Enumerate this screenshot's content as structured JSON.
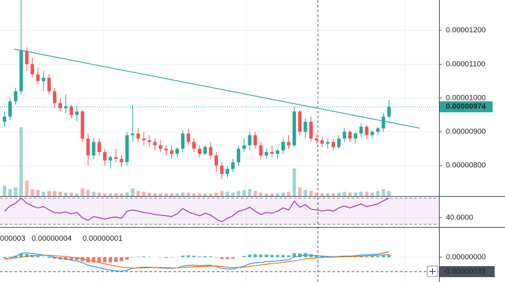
{
  "chart_data": {
    "type": "candlestick",
    "up_color": "#26a69a",
    "down_color": "#ef5350",
    "ylim": [
      7.1e-06,
      1.29e-05
    ],
    "yticks": [
      {
        "value": 8e-06,
        "label": "0.00000800"
      },
      {
        "value": 9e-06,
        "label": "0.00000900"
      },
      {
        "value": 1e-05,
        "label": "0.00001000"
      },
      {
        "value": 1.1e-05,
        "label": "0.00001100"
      },
      {
        "value": 1.2e-05,
        "label": "0.00001200"
      }
    ],
    "grid": true,
    "open": [
      9.3e-06,
      9.45e-06,
      9.9e-06,
      1.02e-05,
      1.14e-05,
      1.1e-05,
      1.07e-05,
      1.05e-05,
      1.06e-05,
      1.02e-05,
      9.85e-06,
      9.7e-06,
      9.75e-06,
      9.5e-06,
      9.6e-06,
      8.8e-06,
      8.3e-06,
      8.7e-06,
      8.4e-06,
      8.15e-06,
      8.25e-06,
      8.2e-06,
      8.1e-06,
      8.9e-06,
      8.95e-06,
      8.8e-06,
      8.75e-06,
      8.7e-06,
      8.6e-06,
      8.5e-06,
      8.45e-06,
      8.35e-06,
      8.5e-06,
      8.95e-06,
      8.7e-06,
      8.5e-06,
      8.35e-06,
      8.55e-06,
      8.3e-06,
      8e-06,
      7.75e-06,
      7.9e-06,
      8.1e-06,
      8.5e-06,
      8.6e-06,
      8.9e-06,
      8.6e-06,
      8.3e-06,
      8.4e-06,
      8.35e-06,
      8.45e-06,
      8.7e-06,
      8.6e-06,
      9.6e-06,
      9e-06,
      9.3e-06,
      8.8e-06,
      8.75e-06,
      8.65e-06,
      8.7e-06,
      8.55e-06,
      8.8e-06,
      9e-06,
      8.8e-06,
      8.95e-06,
      9.15e-06,
      8.9e-06,
      9e-06,
      9.1e-06,
      9.45e-06
    ],
    "high": [
      9.6e-06,
      1e-05,
      1.03e-05,
      1.29e-05,
      1.15e-05,
      1.12e-05,
      1.09e-05,
      1.08e-05,
      1.07e-05,
      1.03e-05,
      1e-05,
      1.01e-05,
      9.8e-06,
      9.75e-06,
      9.65e-06,
      8.95e-06,
      8.8e-06,
      8.8e-06,
      8.5e-06,
      8.3e-06,
      8.5e-06,
      8.3e-06,
      9e-06,
      9.8e-06,
      9.1e-06,
      9e-06,
      8.9e-06,
      8.8e-06,
      8.75e-06,
      8.6e-06,
      8.6e-06,
      8.55e-06,
      9.05e-06,
      9.1e-06,
      8.8e-06,
      8.6e-06,
      8.6e-06,
      8.7e-06,
      8.4e-06,
      8.1e-06,
      8e-06,
      8.2e-06,
      8.6e-06,
      8.8e-06,
      9e-06,
      9e-06,
      8.7e-06,
      8.5e-06,
      8.6e-06,
      8.5e-06,
      8.8e-06,
      8.9e-06,
      9.75e-06,
      9.65e-06,
      9.4e-06,
      9.45e-06,
      8.95e-06,
      8.85e-06,
      8.8e-06,
      8.8e-06,
      8.9e-06,
      9.1e-06,
      9.05e-06,
      9e-06,
      9.25e-06,
      9.2e-06,
      9.05e-06,
      9.15e-06,
      9.55e-06,
      9.95e-06
    ],
    "low": [
      9.15e-06,
      9.35e-06,
      9.8e-06,
      1.01e-05,
      1.08e-05,
      1.06e-05,
      1.04e-05,
      1.02e-05,
      1.01e-05,
      9.7e-06,
      9.6e-06,
      9.55e-06,
      9.4e-06,
      9.3e-06,
      8.7e-06,
      8e-06,
      8.2e-06,
      8.3e-06,
      8e-06,
      7.9e-06,
      8.1e-06,
      7.95e-06,
      8e-06,
      8.7e-06,
      8.7e-06,
      8.6e-06,
      8.55e-06,
      8.45e-06,
      8.4e-06,
      8.3e-06,
      8.2e-06,
      8.25e-06,
      8.4e-06,
      8.6e-06,
      8.4e-06,
      8.25e-06,
      8.3e-06,
      8.2e-06,
      7.8e-06,
      7.6e-06,
      7.65e-06,
      7.8e-06,
      8e-06,
      8.4e-06,
      8.45e-06,
      8.5e-06,
      8.2e-06,
      8.2e-06,
      8.25e-06,
      8.2e-06,
      8.35e-06,
      8.5e-06,
      8.55e-06,
      8.9e-06,
      8.8e-06,
      8.7e-06,
      8.65e-06,
      8.55e-06,
      8.5e-06,
      8.45e-06,
      8.5e-06,
      8.7e-06,
      8.7e-06,
      8.65e-06,
      8.85e-06,
      8.8e-06,
      8.8e-06,
      8.9e-06,
      9e-06,
      9.4e-06
    ],
    "close": [
      9.45e-06,
      9.9e-06,
      1.02e-05,
      1.14e-05,
      1.1e-05,
      1.07e-05,
      1.05e-05,
      1.06e-05,
      1.02e-05,
      9.85e-06,
      9.7e-06,
      9.75e-06,
      9.5e-06,
      9.6e-06,
      8.8e-06,
      8.3e-06,
      8.7e-06,
      8.4e-06,
      8.15e-06,
      8.25e-06,
      8.2e-06,
      8.1e-06,
      8.9e-06,
      8.95e-06,
      8.8e-06,
      8.75e-06,
      8.7e-06,
      8.6e-06,
      8.5e-06,
      8.45e-06,
      8.35e-06,
      8.5e-06,
      8.95e-06,
      8.7e-06,
      8.5e-06,
      8.35e-06,
      8.55e-06,
      8.3e-06,
      8e-06,
      7.75e-06,
      7.9e-06,
      8.1e-06,
      8.5e-06,
      8.6e-06,
      8.9e-06,
      8.6e-06,
      8.3e-06,
      8.4e-06,
      8.35e-06,
      8.45e-06,
      8.7e-06,
      8.6e-06,
      9.6e-06,
      9e-06,
      9.3e-06,
      8.8e-06,
      8.75e-06,
      8.65e-06,
      8.7e-06,
      8.55e-06,
      8.8e-06,
      9e-06,
      8.8e-06,
      8.95e-06,
      9.15e-06,
      8.9e-06,
      9e-06,
      9.1e-06,
      9.45e-06,
      9.74e-06
    ],
    "volume": [
      60,
      40,
      50,
      400,
      90,
      40,
      35,
      25,
      30,
      30,
      25,
      20,
      20,
      15,
      45,
      35,
      25,
      20,
      15,
      15,
      15,
      15,
      20,
      45,
      30,
      25,
      20,
      15,
      15,
      15,
      15,
      15,
      20,
      20,
      15,
      15,
      15,
      15,
      20,
      30,
      25,
      20,
      30,
      35,
      40,
      30,
      20,
      15,
      15,
      15,
      20,
      25,
      160,
      50,
      35,
      30,
      20,
      15,
      15,
      15,
      20,
      25,
      20,
      20,
      25,
      25,
      20,
      30,
      40,
      30
    ],
    "last_price": {
      "value": 9.74e-06,
      "label": "0.00000974"
    },
    "trendline": {
      "index": [
        2,
        74.8
      ],
      "price": [
        1.145e-05,
        9.11e-06
      ],
      "color": "#26a69a"
    },
    "rsi": {
      "values": [
        50,
        58,
        62,
        70,
        62,
        58,
        55,
        57,
        52,
        48,
        47,
        49,
        46,
        48,
        40,
        36,
        42,
        40,
        38,
        40,
        41,
        39,
        50,
        52,
        50,
        48,
        47,
        45,
        44,
        43,
        42,
        46,
        54,
        49,
        46,
        43,
        47,
        44,
        38,
        34,
        39,
        43,
        50,
        52,
        56,
        50,
        45,
        48,
        47,
        50,
        55,
        52,
        65,
        56,
        60,
        53,
        52,
        50,
        52,
        50,
        55,
        58,
        55,
        58,
        61,
        57,
        59,
        61,
        66,
        70
      ],
      "color": "#9c27b0",
      "ylim": [
        26,
        71
      ],
      "yticks": [
        {
          "value": 40,
          "label": "40.0000"
        }
      ],
      "band": [
        30,
        70
      ]
    },
    "macd": {
      "ylim": [
        -6.7e-07,
        7.6e-07
      ],
      "yticks": [
        {
          "value": 0,
          "label": "0.00000000"
        }
      ],
      "legend": [
        {
          "label": "000003",
          "color": "#80cbc4"
        },
        {
          "label": "0.00000004",
          "color": "#2196f3"
        },
        {
          "label": "0.00000001",
          "color": "#ff6d00"
        }
      ],
      "histogram": {
        "values": [
          -2e-08,
          1e-08,
          4e-08,
          1e-07,
          9e-08,
          6e-08,
          3e-08,
          1e-08,
          -2e-08,
          -4e-08,
          -6e-08,
          -7e-08,
          -8e-08,
          -8e-08,
          -1.1e-07,
          -1.4e-07,
          -1.4e-07,
          -1.4e-07,
          -1.4e-07,
          -1.4e-07,
          -1.3e-07,
          -1.1e-07,
          -7e-08,
          -1e-08,
          1e-08,
          2e-08,
          1e-08,
          0,
          -1e-08,
          -2e-08,
          -1e-08,
          0,
          4e-08,
          5e-08,
          4e-08,
          2e-08,
          3e-08,
          2e-08,
          -1e-08,
          -5e-08,
          -5e-08,
          -4e-08,
          0,
          3e-08,
          7e-08,
          8e-08,
          7e-08,
          7e-08,
          6e-08,
          6e-08,
          6e-08,
          5e-08,
          1.1e-07,
          1e-07,
          1.1e-07,
          8e-08,
          6e-08,
          4e-08,
          2e-08,
          1e-08,
          1e-08,
          2e-08,
          1e-08,
          2e-08,
          3e-08,
          2e-08,
          3e-08,
          3e-08,
          5e-08,
          7e-08
        ],
        "up_color": "#26a69a",
        "down_color": "#ef5350"
      },
      "macd_line": {
        "values": [
          -5e-08,
          -2e-08,
          2e-08,
          1e-07,
          1.2e-07,
          1e-07,
          8e-08,
          6e-08,
          3e-08,
          0,
          -3e-08,
          -5e-08,
          -8e-08,
          -1e-07,
          -1.5e-07,
          -2.2e-07,
          -2.5e-07,
          -2.8e-07,
          -3.2e-07,
          -3.5e-07,
          -3.7e-07,
          -3.8e-07,
          -3.5e-07,
          -3e-07,
          -2.8e-07,
          -2.7e-07,
          -2.7e-07,
          -2.8e-07,
          -2.9e-07,
          -3e-07,
          -3e-07,
          -2.9e-07,
          -2.4e-07,
          -2.2e-07,
          -2.2e-07,
          -2.3e-07,
          -2.2e-07,
          -2.2e-07,
          -2.5e-07,
          -3e-07,
          -3.2e-07,
          -3.2e-07,
          -2.8e-07,
          -2.4e-07,
          -1.8e-07,
          -1.5e-07,
          -1.4e-07,
          -1.2e-07,
          -1.1e-07,
          -1e-07,
          -8e-08,
          -7e-08,
          1e-08,
          3e-08,
          6e-08,
          5e-08,
          4e-08,
          3e-08,
          2e-08,
          1e-08,
          2e-08,
          3e-08,
          3e-08,
          4e-08,
          6e-08,
          6e-08,
          7e-08,
          8e-08,
          1.1e-07,
          1.5e-07
        ],
        "color": "#2196f3"
      },
      "signal": {
        "values": [
          -3e-08,
          -3e-08,
          -2e-08,
          0,
          3e-08,
          4e-08,
          5e-08,
          5e-08,
          5e-08,
          4e-08,
          3e-08,
          2e-08,
          0,
          -2e-08,
          -4e-08,
          -8e-08,
          -1.1e-07,
          -1.4e-07,
          -1.8e-07,
          -2.1e-07,
          -2.4e-07,
          -2.7e-07,
          -2.8e-07,
          -2.9e-07,
          -2.9e-07,
          -2.9e-07,
          -2.8e-07,
          -2.8e-07,
          -2.8e-07,
          -2.8e-07,
          -2.9e-07,
          -2.9e-07,
          -2.8e-07,
          -2.7e-07,
          -2.6e-07,
          -2.5e-07,
          -2.5e-07,
          -2.4e-07,
          -2.4e-07,
          -2.5e-07,
          -2.7e-07,
          -2.8e-07,
          -2.8e-07,
          -2.7e-07,
          -2.5e-07,
          -2.3e-07,
          -2.1e-07,
          -1.9e-07,
          -1.7e-07,
          -1.6e-07,
          -1.4e-07,
          -1.2e-07,
          -1e-07,
          -7e-08,
          -5e-08,
          -3e-08,
          -2e-08,
          -1e-08,
          0,
          0,
          1e-08,
          1e-08,
          2e-08,
          2e-08,
          3e-08,
          4e-08,
          4e-08,
          5e-08,
          6e-08,
          8e-08
        ],
        "color": "#ff6d00"
      },
      "crosshair": {
        "value": -3.9e-07,
        "label": "-0.00000039"
      }
    }
  }
}
